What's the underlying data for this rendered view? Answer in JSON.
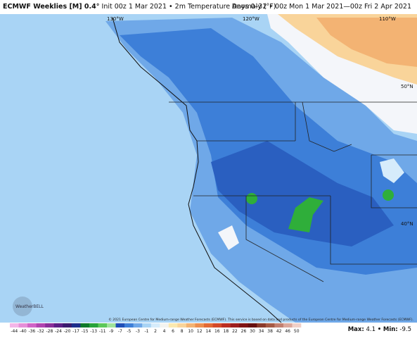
{
  "header": {
    "title_bold": "ECMWF Weeklies [M] 0.4°",
    "title_rest": "Init 00z 1 Mar 2021 • 2m Temperature Anomaly (°F)",
    "right": "Days 0–32 • 00z Mon 1 Mar 2021—00z Fri 2 Apr 2021"
  },
  "map": {
    "labels": [
      "130°W",
      "120°W",
      "110°W",
      "50°N",
      "40°N"
    ],
    "copyright": "© 2021 European Centre for Medium-range Weather Forecasts (ECMWF). This service is based on data and products of the European Centre for Medium-range Weather Forecasts (ECMWF).",
    "logo": "WeatherBELL"
  },
  "colorbar": {
    "ticks": [
      "-44",
      "-40",
      "-36",
      "-32",
      "-28",
      "-24",
      "-20",
      "-17",
      "-15",
      "-13",
      "-11",
      "-9",
      "-7",
      "-5",
      "-3",
      "-1",
      "2",
      "4",
      "6",
      "8",
      "10",
      "12",
      "14",
      "16",
      "18",
      "22",
      "26",
      "30",
      "34",
      "38",
      "42",
      "46",
      "50"
    ],
    "colors": [
      "#f3b6e8",
      "#e58fd8",
      "#cf63c6",
      "#b044b0",
      "#8a2f9a",
      "#5c1f85",
      "#3a1a6e",
      "#1d2f8c",
      "#0e7a2a",
      "#27a33a",
      "#5cc85a",
      "#9fe39a",
      "#1f4fb8",
      "#3d7fd8",
      "#6fa8e8",
      "#a9d4f5",
      "#d6ecfb",
      "#f4f4f0",
      "#fbe9b0",
      "#f9d49a",
      "#f3b373",
      "#ec8f50",
      "#e26a36",
      "#d34a2a",
      "#bb2f22",
      "#9c1e1e",
      "#7f1414",
      "#661010",
      "#8a3b2c",
      "#a55a45",
      "#c28070",
      "#dba89c",
      "#f0d0c8"
    ]
  },
  "stats": {
    "max_label": "Max:",
    "max": "4.1",
    "sep": "•",
    "min_label": "Min:",
    "min": "-9.5"
  }
}
